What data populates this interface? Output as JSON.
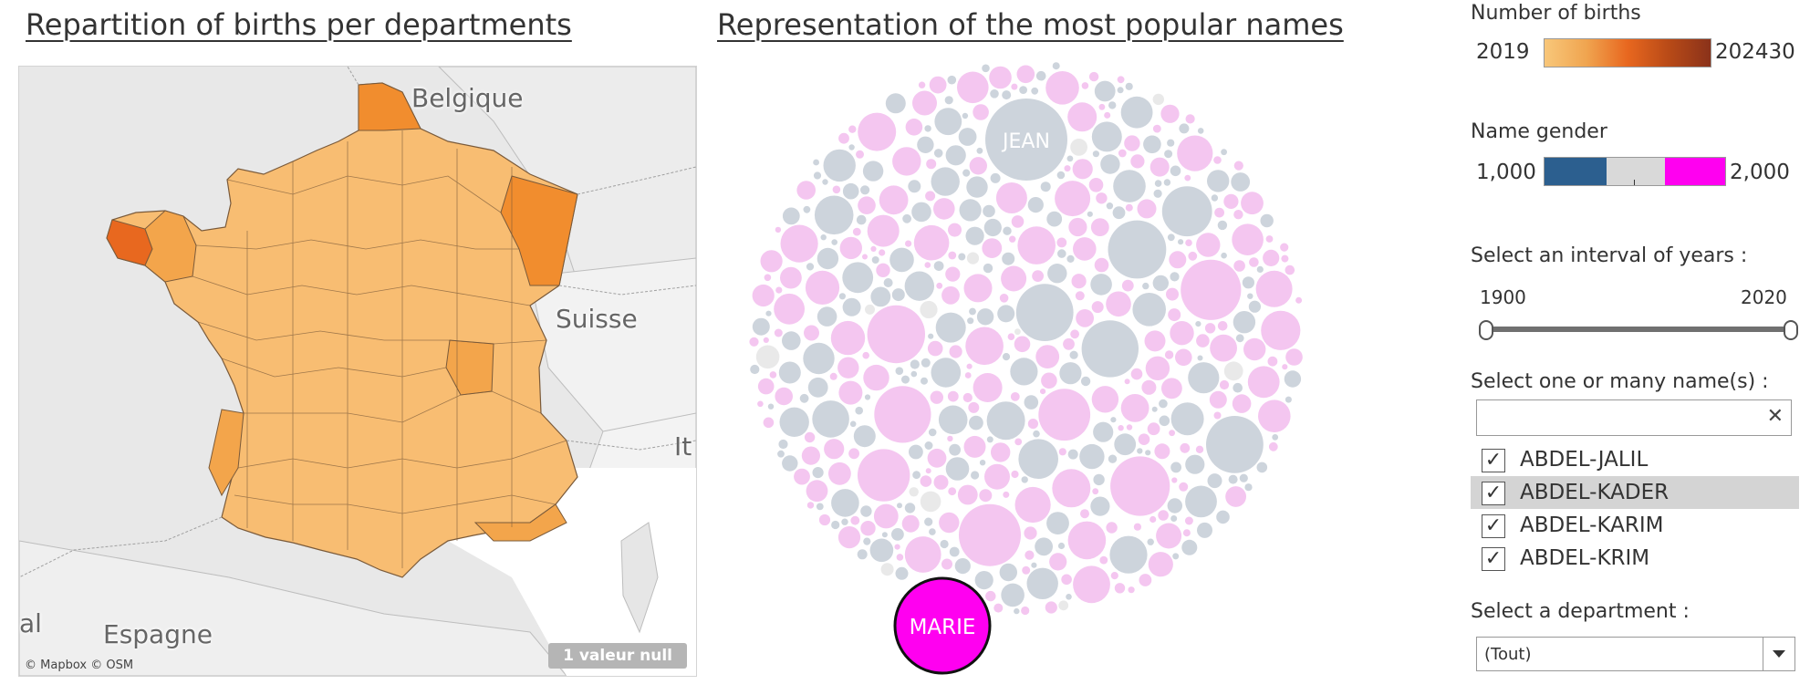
{
  "map": {
    "title": "Repartition of births per departments",
    "labels": {
      "belgique": "Belgique",
      "suisse": "Suisse",
      "espagne": "Espagne",
      "italy": "It",
      "portugal": "al"
    },
    "attribution": "© Mapbox © OSM",
    "null_badge": "1 valeur null",
    "colors": {
      "base": "#f8bd72",
      "mid": "#f3a54b",
      "high": "#f18d2e",
      "max": "#e8681f",
      "background": "#e8e8e8",
      "border": "#7a5a3a"
    }
  },
  "bubbles": {
    "title": "Representation of the most popular names",
    "top_label": "JEAN",
    "bottom_label": "MARIE",
    "colors": {
      "male": "#cdd4dc",
      "female": "#f4c6f0",
      "neutral": "#e9e9e9",
      "highlight": "#ff00f0"
    }
  },
  "legend_births": {
    "label": "Number of births",
    "min": "2019",
    "max": "202430"
  },
  "legend_gender": {
    "label": "Name gender",
    "min": "1,000",
    "max": "2,000",
    "colors": [
      "#2c5f8f",
      "#d9d9d9",
      "#ff00f0"
    ]
  },
  "years": {
    "label": "Select an interval of years :",
    "min": "1900",
    "max": "2020"
  },
  "names": {
    "label": "Select one or many name(s) :",
    "search_value": "",
    "clear_icon": "close-icon",
    "items": [
      {
        "label": "ABDEL-JALIL",
        "checked": true
      },
      {
        "label": "ABDEL-KADER",
        "checked": true
      },
      {
        "label": "ABDEL-KARIM",
        "checked": true
      },
      {
        "label": "ABDEL-KRIM",
        "checked": true
      }
    ]
  },
  "department": {
    "label": "Select a department :",
    "value": "(Tout)"
  }
}
